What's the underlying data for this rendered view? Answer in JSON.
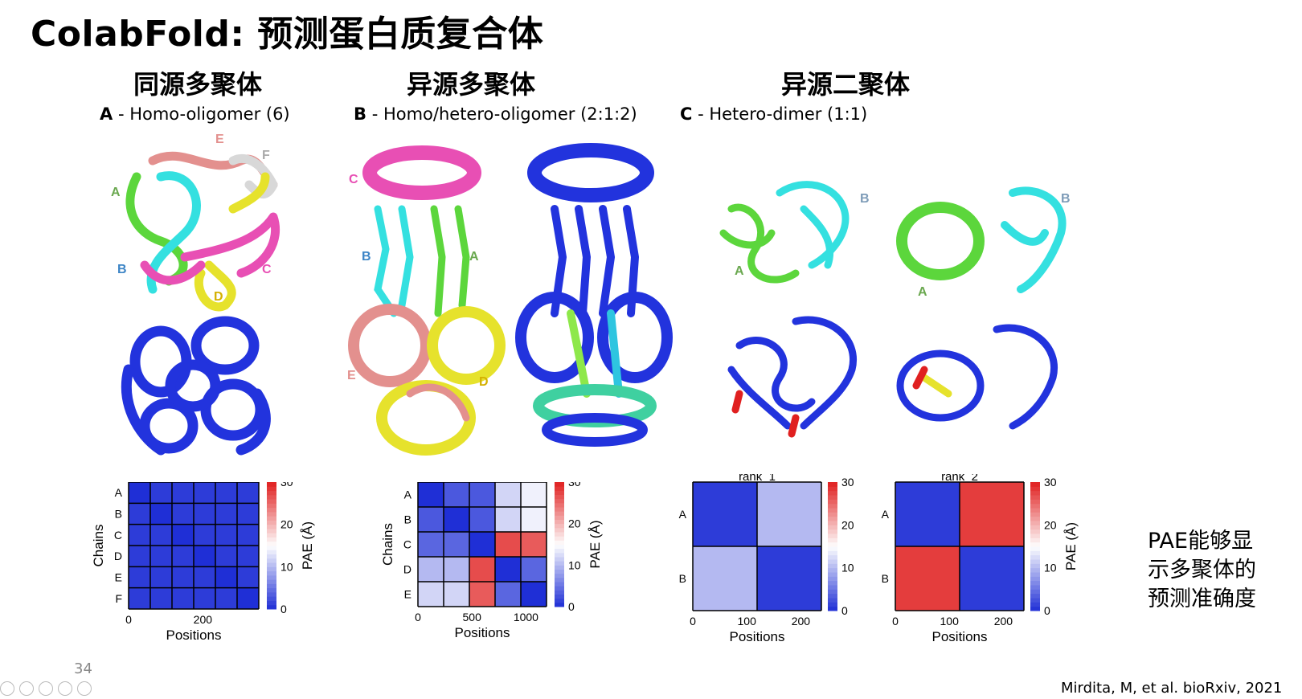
{
  "title": "ColabFold: 预测蛋白质复合体",
  "columns": [
    {
      "heading": "同源多聚体",
      "panel_letter": "A",
      "panel_text": " - Homo-oligomer (6)"
    },
    {
      "heading": "异源多聚体",
      "panel_letter": "B",
      "panel_text": " - Homo/hetero-oligomer (2:1:2)"
    },
    {
      "heading": "异源二聚体",
      "panel_letter": "C",
      "panel_text": " - Hetero-dimer (1:1)"
    }
  ],
  "structure_labels": {
    "A": [
      "E",
      "F",
      "A",
      "B",
      "C",
      "D"
    ],
    "B": [
      "C",
      "B",
      "A",
      "E",
      "D"
    ],
    "C_left": [
      "B",
      "A"
    ],
    "C_right": [
      "B",
      "A"
    ]
  },
  "colors": {
    "chain_A": "#5cd63c",
    "chain_B": "#34e0e0",
    "chain_C": "#e84fb4",
    "chain_D": "#e6e22c",
    "chain_E": "#e3908e",
    "chain_F": "#d8d8d8",
    "pae_low": "#1f2fd6",
    "pae_high": "#e02020",
    "pae_mid": "#ffffff"
  },
  "side_note": [
    "PAE能够显",
    "示多聚体的",
    "预测准确度"
  ],
  "page_number": "34",
  "citation": "Mirdita, M, et al. bioRxiv, 2021",
  "chart_data": [
    {
      "type": "heatmap",
      "title": "",
      "xlabel": "Positions",
      "ylabel": "Chains",
      "x_ticks": [
        "0",
        "200"
      ],
      "y_categories": [
        "A",
        "B",
        "C",
        "D",
        "E",
        "F"
      ],
      "colorbar": {
        "label": "PAE (Å)",
        "range": [
          0,
          30
        ],
        "ticks": [
          "0",
          "10",
          "20",
          "30"
        ]
      },
      "blocks": [
        [
          0,
          1,
          1,
          1,
          1,
          1
        ],
        [
          1,
          0,
          1,
          1,
          1,
          1
        ],
        [
          1,
          1,
          0,
          1,
          1,
          1
        ],
        [
          1,
          1,
          1,
          0,
          1,
          1
        ],
        [
          1,
          1,
          1,
          1,
          0,
          1
        ],
        [
          1,
          1,
          1,
          1,
          1,
          0
        ]
      ]
    },
    {
      "type": "heatmap",
      "title": "",
      "xlabel": "Positions",
      "ylabel": "Chains",
      "x_ticks": [
        "0",
        "500",
        "1000"
      ],
      "y_categories": [
        "A",
        "B",
        "C",
        "D",
        "E"
      ],
      "colorbar": {
        "label": "PAE (Å)",
        "range": [
          0,
          30
        ],
        "ticks": [
          "0",
          "10",
          "20",
          "30"
        ]
      },
      "blocks": [
        [
          0,
          3,
          3,
          12,
          14
        ],
        [
          3,
          0,
          3,
          12,
          14
        ],
        [
          4,
          4,
          0,
          27,
          26
        ],
        [
          10,
          10,
          27,
          0,
          4
        ],
        [
          12,
          12,
          26,
          4,
          0
        ]
      ]
    },
    {
      "type": "heatmap",
      "title": "rank_1",
      "xlabel": "Positions",
      "ylabel": "Chains",
      "x_ticks": [
        "0",
        "100",
        "200"
      ],
      "y_categories": [
        "A",
        "B"
      ],
      "colorbar": {
        "label": "",
        "range": [
          0,
          30
        ],
        "ticks": [
          "0",
          "10",
          "20",
          "30"
        ]
      },
      "blocks": [
        [
          1,
          10
        ],
        [
          10,
          1
        ]
      ]
    },
    {
      "type": "heatmap",
      "title": "rank_2",
      "xlabel": "Positions",
      "ylabel": "",
      "x_ticks": [
        "0",
        "100",
        "200"
      ],
      "y_categories": [
        "A",
        "B"
      ],
      "colorbar": {
        "label": "PAE (Å)",
        "range": [
          0,
          30
        ],
        "ticks": [
          "0",
          "10",
          "20",
          "30"
        ]
      },
      "blocks": [
        [
          1,
          28
        ],
        [
          28,
          1
        ]
      ]
    }
  ]
}
